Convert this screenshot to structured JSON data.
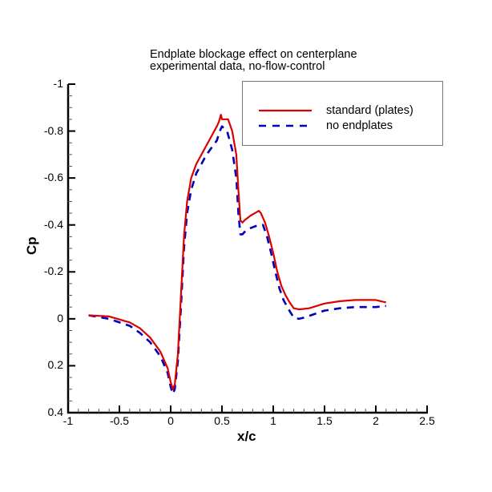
{
  "chart_data": {
    "type": "line",
    "title": "Endplate blockage effect on centerplane\nexperimental data, no-flow-control",
    "title_lines": [
      "Endplate blockage effect on centerplane",
      "experimental data, no-flow-control"
    ],
    "xlabel": "x/c",
    "ylabel": "Cp",
    "xlim": [
      -1,
      2.5
    ],
    "ylim": [
      0.4,
      -1
    ],
    "y_inverted": true,
    "xticks": [
      -1,
      -0.5,
      0,
      0.5,
      1,
      1.5,
      2,
      2.5
    ],
    "xtick_labels": [
      "-1",
      "-0.5",
      "0",
      "0.5",
      "1",
      "1.5",
      "2",
      "2.5"
    ],
    "yticks": [
      -1,
      -0.8,
      -0.6,
      -0.4,
      -0.2,
      0,
      0.2,
      0.4
    ],
    "ytick_labels": [
      "-1",
      "-0.8",
      "-0.6",
      "-0.4",
      "-0.2",
      "0",
      "0.2",
      "0.4"
    ],
    "grid": false,
    "legend_position": "upper right",
    "series": [
      {
        "name": "standard (plates)",
        "color": "#dd0000",
        "style": "solid",
        "x": [
          -0.8,
          -0.6,
          -0.4,
          -0.3,
          -0.2,
          -0.1,
          -0.03,
          0.0,
          0.02,
          0.04,
          0.07,
          0.1,
          0.13,
          0.16,
          0.2,
          0.25,
          0.3,
          0.35,
          0.4,
          0.45,
          0.47,
          0.49,
          0.5,
          0.52,
          0.56,
          0.6,
          0.64,
          0.66,
          0.68,
          0.7,
          0.72,
          0.78,
          0.82,
          0.86,
          0.88,
          0.92,
          0.96,
          1.0,
          1.04,
          1.08,
          1.12,
          1.16,
          1.2,
          1.25,
          1.35,
          1.5,
          1.65,
          1.8,
          1.9,
          2.0,
          2.1
        ],
        "y": [
          -0.015,
          -0.01,
          0.015,
          0.04,
          0.08,
          0.14,
          0.21,
          0.27,
          0.3,
          0.28,
          0.15,
          -0.1,
          -0.35,
          -0.5,
          -0.6,
          -0.66,
          -0.7,
          -0.74,
          -0.78,
          -0.82,
          -0.84,
          -0.87,
          -0.85,
          -0.85,
          -0.85,
          -0.8,
          -0.7,
          -0.55,
          -0.42,
          -0.41,
          -0.42,
          -0.44,
          -0.45,
          -0.46,
          -0.45,
          -0.41,
          -0.35,
          -0.28,
          -0.2,
          -0.14,
          -0.1,
          -0.07,
          -0.045,
          -0.04,
          -0.045,
          -0.065,
          -0.075,
          -0.08,
          -0.08,
          -0.08,
          -0.07
        ]
      },
      {
        "name": "no endplates",
        "color": "#0000bb",
        "style": "dashed",
        "x": [
          -0.8,
          -0.6,
          -0.4,
          -0.3,
          -0.2,
          -0.1,
          -0.03,
          0.0,
          0.02,
          0.04,
          0.07,
          0.1,
          0.13,
          0.16,
          0.2,
          0.25,
          0.3,
          0.35,
          0.4,
          0.45,
          0.48,
          0.5,
          0.55,
          0.6,
          0.64,
          0.66,
          0.68,
          0.7,
          0.74,
          0.8,
          0.86,
          0.9,
          0.94,
          0.98,
          1.02,
          1.06,
          1.1,
          1.15,
          1.2,
          1.25,
          1.3,
          1.4,
          1.5,
          1.65,
          1.8,
          1.9,
          2.0,
          2.1
        ],
        "y": [
          -0.015,
          0.0,
          0.03,
          0.06,
          0.1,
          0.16,
          0.23,
          0.29,
          0.32,
          0.3,
          0.18,
          -0.05,
          -0.3,
          -0.45,
          -0.55,
          -0.62,
          -0.66,
          -0.7,
          -0.73,
          -0.76,
          -0.8,
          -0.82,
          -0.8,
          -0.72,
          -0.6,
          -0.45,
          -0.36,
          -0.36,
          -0.38,
          -0.39,
          -0.4,
          -0.4,
          -0.35,
          -0.28,
          -0.2,
          -0.13,
          -0.08,
          -0.04,
          -0.005,
          0.0,
          -0.005,
          -0.02,
          -0.035,
          -0.045,
          -0.05,
          -0.05,
          -0.05,
          -0.055
        ]
      }
    ]
  },
  "legend": {
    "items": [
      {
        "label": "standard (plates)",
        "color": "#dd0000",
        "style": "solid"
      },
      {
        "label": "no endplates",
        "color": "#0000bb",
        "style": "dashed"
      }
    ]
  },
  "axes": {
    "xlabel": "x/c",
    "ylabel": "Cp"
  }
}
